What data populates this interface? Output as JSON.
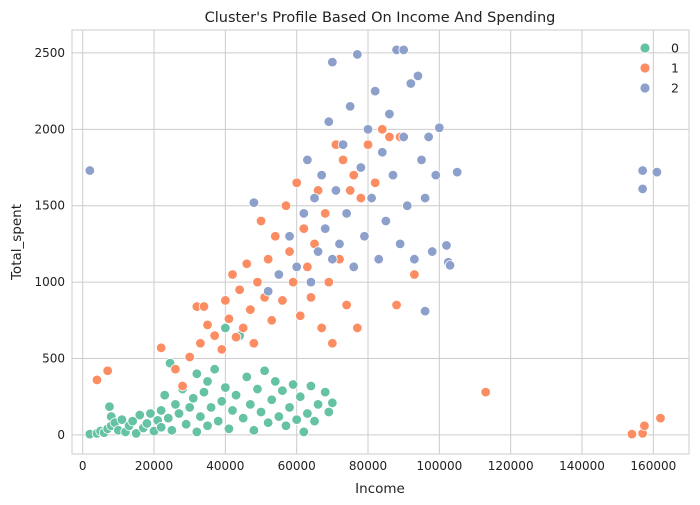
{
  "chart_data": {
    "type": "scatter",
    "title": "Cluster's Profile Based On Income And Spending",
    "xlabel": "Income",
    "ylabel": "Total_spent",
    "xlim": [
      -3000,
      170000
    ],
    "ylim": [
      -125,
      2650
    ],
    "xticks": [
      0,
      20000,
      40000,
      60000,
      80000,
      100000,
      120000,
      140000,
      160000
    ],
    "yticks": [
      0,
      500,
      1000,
      1500,
      2000,
      2500
    ],
    "grid": true,
    "legend_position": "top-right",
    "series": [
      {
        "name": "0",
        "color": "#66c2a5",
        "points": [
          [
            2000,
            5
          ],
          [
            4000,
            10
          ],
          [
            5000,
            25
          ],
          [
            6000,
            15
          ],
          [
            7000,
            40
          ],
          [
            8000,
            60
          ],
          [
            8000,
            120
          ],
          [
            7500,
            185
          ],
          [
            9000,
            80
          ],
          [
            10000,
            30
          ],
          [
            11000,
            100
          ],
          [
            12000,
            20
          ],
          [
            13000,
            60
          ],
          [
            14000,
            90
          ],
          [
            15000,
            10
          ],
          [
            16000,
            130
          ],
          [
            17000,
            45
          ],
          [
            18000,
            75
          ],
          [
            19000,
            140
          ],
          [
            20000,
            25
          ],
          [
            21000,
            95
          ],
          [
            22000,
            160
          ],
          [
            22000,
            50
          ],
          [
            23000,
            260
          ],
          [
            24000,
            110
          ],
          [
            24500,
            470
          ],
          [
            25000,
            30
          ],
          [
            26000,
            200
          ],
          [
            27000,
            140
          ],
          [
            28000,
            300
          ],
          [
            29000,
            70
          ],
          [
            30000,
            180
          ],
          [
            31000,
            240
          ],
          [
            32000,
            20
          ],
          [
            32000,
            400
          ],
          [
            33000,
            120
          ],
          [
            34000,
            280
          ],
          [
            35000,
            60
          ],
          [
            35000,
            350
          ],
          [
            36000,
            180
          ],
          [
            37000,
            430
          ],
          [
            38000,
            90
          ],
          [
            39000,
            220
          ],
          [
            40000,
            310
          ],
          [
            40000,
            700
          ],
          [
            41000,
            40
          ],
          [
            42000,
            160
          ],
          [
            43000,
            260
          ],
          [
            44000,
            650
          ],
          [
            45000,
            110
          ],
          [
            46000,
            380
          ],
          [
            47000,
            200
          ],
          [
            48000,
            30
          ],
          [
            49000,
            300
          ],
          [
            50000,
            150
          ],
          [
            51000,
            420
          ],
          [
            52000,
            80
          ],
          [
            53000,
            230
          ],
          [
            54000,
            350
          ],
          [
            55000,
            120
          ],
          [
            56000,
            290
          ],
          [
            57000,
            60
          ],
          [
            58000,
            180
          ],
          [
            59000,
            330
          ],
          [
            60000,
            100
          ],
          [
            61000,
            250
          ],
          [
            62000,
            20
          ],
          [
            63000,
            140
          ],
          [
            64000,
            320
          ],
          [
            65000,
            90
          ],
          [
            66000,
            200
          ],
          [
            68000,
            280
          ],
          [
            69000,
            150
          ],
          [
            70000,
            210
          ]
        ]
      },
      {
        "name": "1",
        "color": "#fc8d62",
        "points": [
          [
            4000,
            360
          ],
          [
            7000,
            420
          ],
          [
            22000,
            570
          ],
          [
            26000,
            430
          ],
          [
            28000,
            320
          ],
          [
            30000,
            510
          ],
          [
            32000,
            840
          ],
          [
            33000,
            600
          ],
          [
            34000,
            840
          ],
          [
            35000,
            720
          ],
          [
            37000,
            650
          ],
          [
            39000,
            560
          ],
          [
            40000,
            880
          ],
          [
            41000,
            760
          ],
          [
            42000,
            1050
          ],
          [
            43000,
            640
          ],
          [
            44000,
            950
          ],
          [
            45000,
            700
          ],
          [
            46000,
            1120
          ],
          [
            47000,
            820
          ],
          [
            48000,
            600
          ],
          [
            49000,
            1000
          ],
          [
            50000,
            1400
          ],
          [
            51000,
            900
          ],
          [
            52000,
            1150
          ],
          [
            53000,
            750
          ],
          [
            54000,
            1300
          ],
          [
            55000,
            1050
          ],
          [
            56000,
            880
          ],
          [
            57000,
            1500
          ],
          [
            58000,
            1200
          ],
          [
            59000,
            1000
          ],
          [
            60000,
            1650
          ],
          [
            61000,
            780
          ],
          [
            62000,
            1350
          ],
          [
            63000,
            1100
          ],
          [
            64000,
            900
          ],
          [
            65000,
            1250
          ],
          [
            66000,
            1600
          ],
          [
            67000,
            700
          ],
          [
            68000,
            1450
          ],
          [
            69000,
            1000
          ],
          [
            70000,
            600
          ],
          [
            71000,
            1900
          ],
          [
            72000,
            1150
          ],
          [
            73000,
            1800
          ],
          [
            74000,
            850
          ],
          [
            75000,
            1600
          ],
          [
            76000,
            1700
          ],
          [
            77000,
            700
          ],
          [
            78000,
            1550
          ],
          [
            80000,
            1900
          ],
          [
            82000,
            1650
          ],
          [
            84000,
            2000
          ],
          [
            86000,
            1950
          ],
          [
            88000,
            850
          ],
          [
            89000,
            1950
          ],
          [
            93000,
            1050
          ],
          [
            113000,
            280
          ],
          [
            154000,
            5
          ],
          [
            157000,
            10
          ],
          [
            157500,
            60
          ],
          [
            162000,
            110
          ]
        ]
      },
      {
        "name": "2",
        "color": "#8da0cb",
        "points": [
          [
            2000,
            1730
          ],
          [
            48000,
            1520
          ],
          [
            52000,
            940
          ],
          [
            55000,
            1050
          ],
          [
            58000,
            1300
          ],
          [
            60000,
            1100
          ],
          [
            62000,
            1450
          ],
          [
            63000,
            1800
          ],
          [
            64000,
            1000
          ],
          [
            65000,
            1550
          ],
          [
            66000,
            1200
          ],
          [
            67000,
            1700
          ],
          [
            68000,
            1350
          ],
          [
            69000,
            2050
          ],
          [
            70000,
            1150
          ],
          [
            70000,
            2440
          ],
          [
            71000,
            1600
          ],
          [
            72000,
            1250
          ],
          [
            73000,
            1900
          ],
          [
            74000,
            1450
          ],
          [
            75000,
            2150
          ],
          [
            76000,
            1100
          ],
          [
            77000,
            2490
          ],
          [
            78000,
            1750
          ],
          [
            79000,
            1300
          ],
          [
            80000,
            2000
          ],
          [
            81000,
            1550
          ],
          [
            82000,
            2250
          ],
          [
            83000,
            1150
          ],
          [
            84000,
            1850
          ],
          [
            85000,
            1400
          ],
          [
            86000,
            2100
          ],
          [
            87000,
            1700
          ],
          [
            88000,
            2520
          ],
          [
            89000,
            1250
          ],
          [
            90000,
            1950
          ],
          [
            90000,
            2520
          ],
          [
            91000,
            1500
          ],
          [
            92000,
            2300
          ],
          [
            93000,
            1150
          ],
          [
            94000,
            2350
          ],
          [
            95000,
            1800
          ],
          [
            96000,
            1550
          ],
          [
            97000,
            1950
          ],
          [
            98000,
            1200
          ],
          [
            99000,
            1700
          ],
          [
            100000,
            2010
          ],
          [
            102000,
            1240
          ],
          [
            102500,
            1130
          ],
          [
            103000,
            1110
          ],
          [
            105000,
            1720
          ],
          [
            96000,
            810
          ],
          [
            157000,
            1730
          ],
          [
            157000,
            1610
          ],
          [
            161000,
            1720
          ]
        ]
      }
    ]
  }
}
